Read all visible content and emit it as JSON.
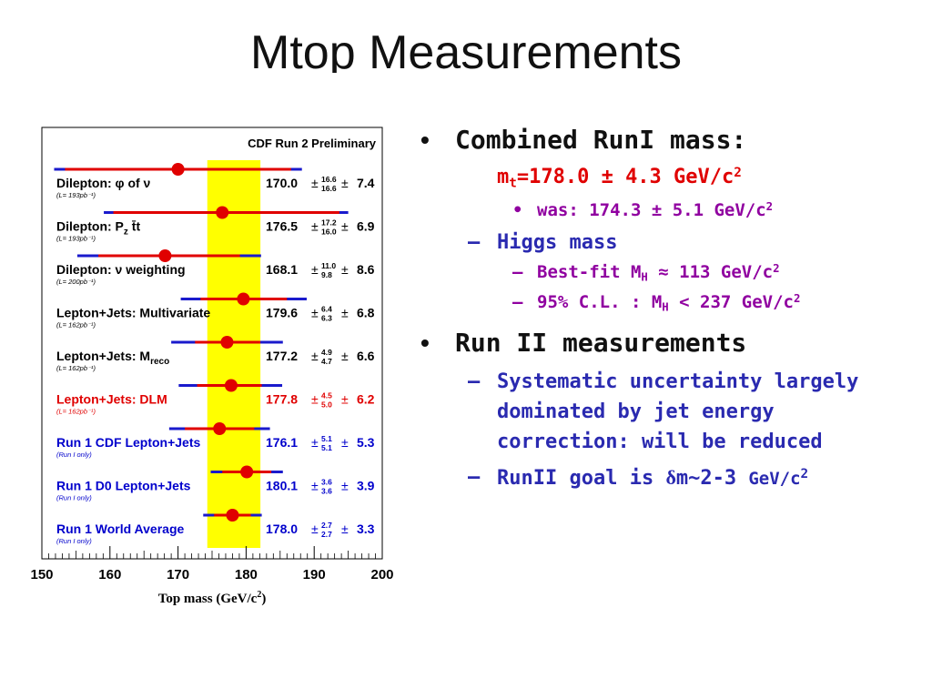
{
  "slide": {
    "title": "Mtop Measurements"
  },
  "figure": {
    "header": "CDF Run 2 Preliminary",
    "x_ticks": [
      "150",
      "160",
      "170",
      "180",
      "190",
      "200"
    ],
    "x_label_main": "Top mass (GeV/c",
    "x_label_sup": "2",
    "x_label_close": ")",
    "band": {
      "min": 174.3,
      "max": 182.1,
      "color": "#ffff00"
    },
    "rows": [
      {
        "label": "Dilepton: φ of ν",
        "sub": "(L= 193pb⁻¹)",
        "value": "170.0",
        "plus": "16.6",
        "minus": "16.6",
        "syst": "7.4",
        "point": 170.0,
        "stat_lo": 153.4,
        "stat_hi": 186.6,
        "tot_lo": 151.8,
        "tot_hi": 188.2,
        "color": "#000000"
      },
      {
        "label": "Dilepton: P",
        "label_sub": "z",
        "label_tail": " t̄t",
        "sub": "(L= 193pb⁻¹)",
        "value": "176.5",
        "plus": "17.2",
        "minus": "16.0",
        "syst": "6.9",
        "point": 176.5,
        "stat_lo": 160.5,
        "stat_hi": 193.7,
        "tot_lo": 159.1,
        "tot_hi": 195.0,
        "color": "#000000"
      },
      {
        "label": "Dilepton: ν weighting",
        "sub": "(L= 200pb⁻¹)",
        "value": "168.1",
        "plus": "11.0",
        "minus": "9.8",
        "syst": "8.6",
        "point": 168.1,
        "stat_lo": 158.3,
        "stat_hi": 179.1,
        "tot_lo": 155.2,
        "tot_hi": 182.2,
        "color": "#000000"
      },
      {
        "label": "Lepton+Jets: Multivariate",
        "sub": "(L= 162pb⁻¹)",
        "value": "179.6",
        "plus": "6.4",
        "minus": "6.3",
        "syst": "6.8",
        "point": 179.6,
        "stat_lo": 173.3,
        "stat_hi": 186.0,
        "tot_lo": 170.4,
        "tot_hi": 188.9,
        "color": "#000000"
      },
      {
        "label": "Lepton+Jets: M",
        "label_sub": "reco",
        "sub": "(L= 162pb⁻¹)",
        "value": "177.2",
        "plus": "4.9",
        "minus": "4.7",
        "syst": "6.6",
        "point": 177.2,
        "stat_lo": 172.5,
        "stat_hi": 182.1,
        "tot_lo": 169.0,
        "tot_hi": 185.4,
        "color": "#000000"
      },
      {
        "label": "Lepton+Jets: DLM",
        "sub": "(L= 162pb⁻¹)",
        "value": "177.8",
        "plus": "4.5",
        "minus": "5.0",
        "syst": "6.2",
        "point": 177.8,
        "stat_lo": 172.8,
        "stat_hi": 182.3,
        "tot_lo": 170.1,
        "tot_hi": 185.3,
        "color": "#e00000"
      },
      {
        "label": "Run 1 CDF Lepton+Jets",
        "sub": "(Run I only)",
        "value": "176.1",
        "plus": "5.1",
        "minus": "5.1",
        "syst": "5.3",
        "point": 176.1,
        "stat_lo": 171.0,
        "stat_hi": 181.2,
        "tot_lo": 168.7,
        "tot_hi": 183.5,
        "color": "#0000cc"
      },
      {
        "label": "Run 1 D0 Lepton+Jets",
        "sub": "(Run I only)",
        "value": "180.1",
        "plus": "3.6",
        "minus": "3.6",
        "syst": "3.9",
        "point": 180.1,
        "stat_lo": 176.5,
        "stat_hi": 183.7,
        "tot_lo": 174.8,
        "tot_hi": 185.4,
        "color": "#0000cc"
      },
      {
        "label": "Run 1 World Average",
        "sub": "(Run I only)",
        "value": "178.0",
        "plus": "2.7",
        "minus": "2.7",
        "syst": "3.3",
        "point": 178.0,
        "stat_lo": 175.3,
        "stat_hi": 180.7,
        "tot_lo": 173.7,
        "tot_hi": 182.3,
        "color": "#0000cc"
      }
    ]
  },
  "bullets": {
    "b1_title": "Combined RunI mass:",
    "b1_mass_pre": "m",
    "b1_mass_sub": "t",
    "b1_mass_val": "=178.0 ± 4.3 GeV/c",
    "b1_mass_sup": "2",
    "b1_was": "was: 174.3 ± 5.1 GeV/c",
    "b1_was_sup": "2",
    "b1_higgs": "Higgs mass",
    "b1_fit_pre": "Best-fit M",
    "b1_fit_sub": "H",
    "b1_fit_post": " ≈ 113 GeV/c",
    "b1_fit_sup": "2",
    "b1_cl_pre": "95% C.L. : M",
    "b1_cl_sub": "H",
    "b1_cl_post": " < 237 GeV/c",
    "b1_cl_sup": "2",
    "b2_title": "Run II measurements",
    "b2_syst": "Systematic uncertainty largely dominated by jet energy correction: will be reduced",
    "b2_goal_pre": "RunII goal is ",
    "b2_goal_delta": "δ",
    "b2_goal_mid": "m~2-3 ",
    "b2_goal_unit": "GeV/c",
    "b2_goal_sup": "2"
  }
}
